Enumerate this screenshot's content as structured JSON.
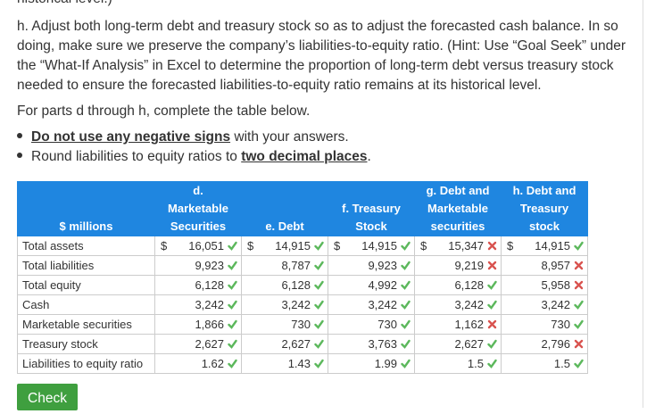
{
  "top_fragment": "historical level.)",
  "instruction_lines": [
    "h. Adjust both long-term debt and treasury stock so as to adjust the forecasted cash balance. In so",
    "doing, make sure we preserve the company’s liabilities-to-equity ratio. (Hint: Use “Goal Seek” under",
    "the “What-If Analysis” in Excel to determine the proportion of long-term debt versus treasury stock",
    "needed to ensure the forecasted liabilities-to-equity ratio remains at its historical level."
  ],
  "intro": "For parts d through h, complete the table below.",
  "bullets": [
    {
      "strong": "Do not use any negative signs",
      "rest": " with your answers."
    },
    {
      "text": "Round liabilities to equity ratios to ",
      "strong": "two decimal places",
      "rest": "."
    }
  ],
  "table": {
    "corner": "$ millions",
    "currency": "$",
    "columns": [
      [
        "d.",
        "Marketable",
        "Securities"
      ],
      [
        "e. Debt"
      ],
      [
        "f. Treasury",
        "Stock"
      ],
      [
        "g. Debt and",
        "Marketable",
        "securities"
      ],
      [
        "h. Debt and",
        "Treasury",
        "stock"
      ]
    ],
    "rows": [
      {
        "label": "Total assets",
        "cells": [
          {
            "value": "16,051",
            "correct": true
          },
          {
            "value": "14,915",
            "correct": true
          },
          {
            "value": "14,915",
            "correct": true
          },
          {
            "value": "15,347",
            "correct": false
          },
          {
            "value": "14,915",
            "correct": true
          }
        ]
      },
      {
        "label": "Total liabilities",
        "cells": [
          {
            "value": "9,923",
            "correct": true
          },
          {
            "value": "8,787",
            "correct": true
          },
          {
            "value": "9,923",
            "correct": true
          },
          {
            "value": "9,219",
            "correct": false
          },
          {
            "value": "8,957",
            "correct": false
          }
        ]
      },
      {
        "label": "Total equity",
        "cells": [
          {
            "value": "6,128",
            "correct": true
          },
          {
            "value": "6,128",
            "correct": true
          },
          {
            "value": "4,992",
            "correct": true
          },
          {
            "value": "6,128",
            "correct": true
          },
          {
            "value": "5,958",
            "correct": false
          }
        ]
      },
      {
        "label": "Cash",
        "cells": [
          {
            "value": "3,242",
            "correct": true
          },
          {
            "value": "3,242",
            "correct": true
          },
          {
            "value": "3,242",
            "correct": true
          },
          {
            "value": "3,242",
            "correct": true
          },
          {
            "value": "3,242",
            "correct": true
          }
        ]
      },
      {
        "label": "Marketable securities",
        "cells": [
          {
            "value": "1,866",
            "correct": true
          },
          {
            "value": "730",
            "correct": true
          },
          {
            "value": "730",
            "correct": true
          },
          {
            "value": "1,162",
            "correct": false
          },
          {
            "value": "730",
            "correct": true
          }
        ]
      },
      {
        "label": "Treasury stock",
        "cells": [
          {
            "value": "2,627",
            "correct": true
          },
          {
            "value": "2,627",
            "correct": true
          },
          {
            "value": "3,763",
            "correct": true
          },
          {
            "value": "2,627",
            "correct": true
          },
          {
            "value": "2,796",
            "correct": false
          }
        ]
      },
      {
        "label": "Liabilities to equity ratio",
        "cells": [
          {
            "value": "1.62",
            "correct": true
          },
          {
            "value": "1.43",
            "correct": true
          },
          {
            "value": "1.99",
            "correct": true
          },
          {
            "value": "1.5",
            "correct": true
          },
          {
            "value": "1.5",
            "correct": true
          }
        ]
      }
    ]
  },
  "button": "Check"
}
